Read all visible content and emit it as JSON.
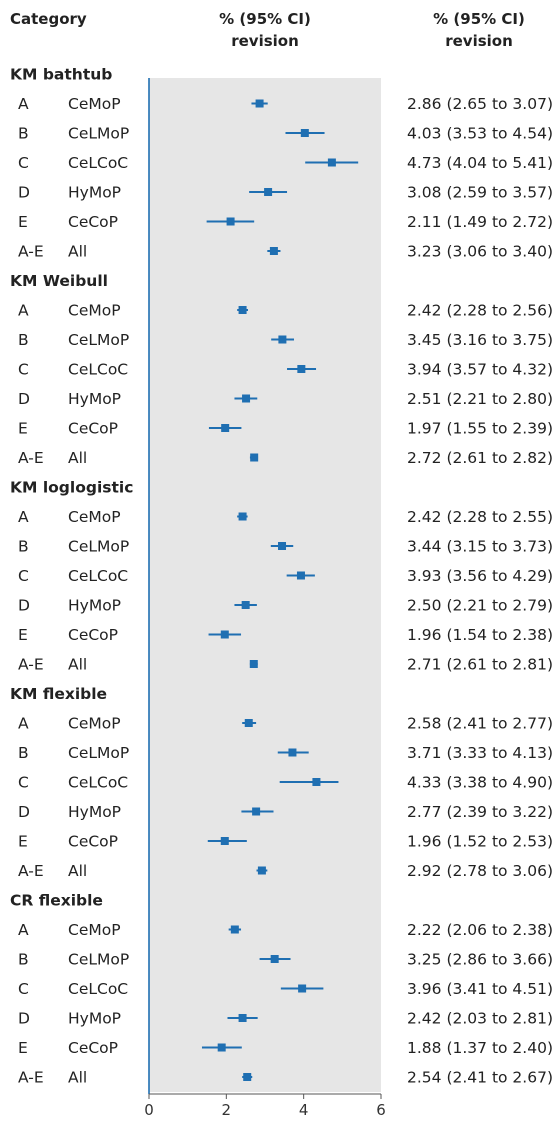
{
  "header": {
    "category": "Category",
    "plot_title_1": "% (95% CI)",
    "plot_title_2": "revision",
    "value_title_1": "% (95% CI)",
    "value_title_2": "revision"
  },
  "colors": {
    "marker": "#1f6fb2",
    "zero_line": "#1f6fb2",
    "panel": "#e6e6e6"
  },
  "chart_data": {
    "type": "forest",
    "xlim": [
      0,
      6
    ],
    "xticks": [
      "0",
      "2",
      "4",
      "6"
    ],
    "groups": [
      {
        "name": "KM bathtub",
        "rows": [
          {
            "code": "A",
            "label": "CeMoP",
            "est": 2.86,
            "lo": 2.65,
            "hi": 3.07,
            "text": "2.86 (2.65 to 3.07)"
          },
          {
            "code": "B",
            "label": "CeLMoP",
            "est": 4.03,
            "lo": 3.53,
            "hi": 4.54,
            "text": "4.03 (3.53 to 4.54)"
          },
          {
            "code": "C",
            "label": "CeLCoC",
            "est": 4.73,
            "lo": 4.04,
            "hi": 5.41,
            "text": "4.73 (4.04 to 5.41)"
          },
          {
            "code": "D",
            "label": "HyMoP",
            "est": 3.08,
            "lo": 2.59,
            "hi": 3.57,
            "text": "3.08 (2.59 to 3.57)"
          },
          {
            "code": "E",
            "label": "CeCoP",
            "est": 2.11,
            "lo": 1.49,
            "hi": 2.72,
            "text": "2.11 (1.49 to 2.72)"
          },
          {
            "code": "A-E",
            "label": "All",
            "est": 3.23,
            "lo": 3.06,
            "hi": 3.4,
            "text": "3.23 (3.06 to 3.40)"
          }
        ]
      },
      {
        "name": "KM Weibull",
        "rows": [
          {
            "code": "A",
            "label": "CeMoP",
            "est": 2.42,
            "lo": 2.28,
            "hi": 2.56,
            "text": "2.42 (2.28 to 2.56)"
          },
          {
            "code": "B",
            "label": "CeLMoP",
            "est": 3.45,
            "lo": 3.16,
            "hi": 3.75,
            "text": "3.45 (3.16 to 3.75)"
          },
          {
            "code": "C",
            "label": "CeLCoC",
            "est": 3.94,
            "lo": 3.57,
            "hi": 4.32,
            "text": "3.94 (3.57 to 4.32)"
          },
          {
            "code": "D",
            "label": "HyMoP",
            "est": 2.51,
            "lo": 2.21,
            "hi": 2.8,
            "text": "2.51 (2.21 to 2.80)"
          },
          {
            "code": "E",
            "label": "CeCoP",
            "est": 1.97,
            "lo": 1.55,
            "hi": 2.39,
            "text": "1.97 (1.55 to 2.39)"
          },
          {
            "code": "A-E",
            "label": "All",
            "est": 2.72,
            "lo": 2.61,
            "hi": 2.82,
            "text": "2.72 (2.61 to 2.82)"
          }
        ]
      },
      {
        "name": "KM loglogistic",
        "rows": [
          {
            "code": "A",
            "label": "CeMoP",
            "est": 2.42,
            "lo": 2.28,
            "hi": 2.55,
            "text": "2.42 (2.28 to 2.55)"
          },
          {
            "code": "B",
            "label": "CeLMoP",
            "est": 3.44,
            "lo": 3.15,
            "hi": 3.73,
            "text": "3.44 (3.15 to 3.73)"
          },
          {
            "code": "C",
            "label": "CeLCoC",
            "est": 3.93,
            "lo": 3.56,
            "hi": 4.29,
            "text": "3.93 (3.56 to 4.29)"
          },
          {
            "code": "D",
            "label": "HyMoP",
            "est": 2.5,
            "lo": 2.21,
            "hi": 2.79,
            "text": "2.50 (2.21 to 2.79)"
          },
          {
            "code": "E",
            "label": "CeCoP",
            "est": 1.96,
            "lo": 1.54,
            "hi": 2.38,
            "text": "1.96 (1.54 to 2.38)"
          },
          {
            "code": "A-E",
            "label": "All",
            "est": 2.71,
            "lo": 2.61,
            "hi": 2.81,
            "text": "2.71 (2.61 to 2.81)"
          }
        ]
      },
      {
        "name": "KM flexible",
        "rows": [
          {
            "code": "A",
            "label": "CeMoP",
            "est": 2.58,
            "lo": 2.41,
            "hi": 2.77,
            "text": "2.58 (2.41 to 2.77)"
          },
          {
            "code": "B",
            "label": "CeLMoP",
            "est": 3.71,
            "lo": 3.33,
            "hi": 4.13,
            "text": "3.71 (3.33 to 4.13)"
          },
          {
            "code": "C",
            "label": "CeLCoC",
            "est": 4.33,
            "lo": 3.38,
            "hi": 4.9,
            "text": "4.33 (3.38 to 4.90)"
          },
          {
            "code": "D",
            "label": "HyMoP",
            "est": 2.77,
            "lo": 2.39,
            "hi": 3.22,
            "text": "2.77 (2.39 to 3.22)"
          },
          {
            "code": "E",
            "label": "CeCoP",
            "est": 1.96,
            "lo": 1.52,
            "hi": 2.53,
            "text": "1.96 (1.52 to 2.53)"
          },
          {
            "code": "A-E",
            "label": "All",
            "est": 2.92,
            "lo": 2.78,
            "hi": 3.06,
            "text": "2.92 (2.78 to 3.06)"
          }
        ]
      },
      {
        "name": "CR flexible",
        "rows": [
          {
            "code": "A",
            "label": "CeMoP",
            "est": 2.22,
            "lo": 2.06,
            "hi": 2.38,
            "text": "2.22 (2.06 to 2.38)"
          },
          {
            "code": "B",
            "label": "CeLMoP",
            "est": 3.25,
            "lo": 2.86,
            "hi": 3.66,
            "text": "3.25 (2.86 to 3.66)"
          },
          {
            "code": "C",
            "label": "CeLCoC",
            "est": 3.96,
            "lo": 3.41,
            "hi": 4.51,
            "text": "3.96 (3.41 to 4.51)"
          },
          {
            "code": "D",
            "label": "HyMoP",
            "est": 2.42,
            "lo": 2.03,
            "hi": 2.81,
            "text": "2.42 (2.03 to 2.81)"
          },
          {
            "code": "E",
            "label": "CeCoP",
            "est": 1.88,
            "lo": 1.37,
            "hi": 2.4,
            "text": "1.88 (1.37 to 2.40)"
          },
          {
            "code": "A-E",
            "label": "All",
            "est": 2.54,
            "lo": 2.41,
            "hi": 2.67,
            "text": "2.54 (2.41 to 2.67)"
          }
        ]
      }
    ]
  }
}
